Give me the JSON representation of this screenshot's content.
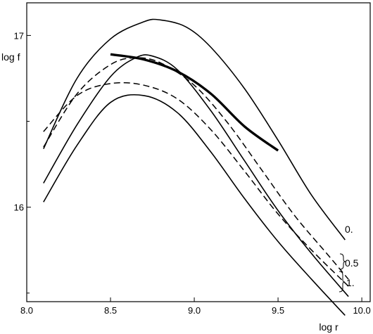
{
  "chart_data": {
    "type": "line",
    "xlabel": "log r",
    "ylabel": "log f",
    "xlim": [
      8.0,
      10.05
    ],
    "ylim": [
      15.45,
      17.19
    ],
    "xticks": [
      8.0,
      8.5,
      9.0,
      9.5,
      10.0
    ],
    "xtick_labels": [
      "8.0",
      "8.5",
      "9.0",
      "9.5",
      "10.0"
    ],
    "yticks": [
      16,
      17
    ],
    "ytick_labels": [
      "16",
      "17"
    ],
    "y_minor_ticks": [
      15.5,
      16.5
    ],
    "grid": false,
    "legend": "none",
    "curve_labels": [
      "0.",
      "0.5",
      "1."
    ],
    "series": [
      {
        "label_ref": 0,
        "style": "solid",
        "x": [
          8.1,
          8.3,
          8.5,
          8.7,
          8.8,
          8.95,
          9.1,
          9.3,
          9.5,
          9.7,
          9.9
        ],
        "y": [
          16.34,
          16.75,
          16.98,
          17.08,
          17.09,
          17.05,
          16.93,
          16.69,
          16.39,
          16.07,
          15.81
        ]
      },
      {
        "label_ref": 1,
        "style": "dashed",
        "x": [
          8.1,
          8.3,
          8.5,
          8.65,
          8.8,
          9.0,
          9.2,
          9.4,
          9.6,
          9.8,
          9.92
        ],
        "y": [
          16.35,
          16.66,
          16.83,
          16.87,
          16.84,
          16.71,
          16.49,
          16.22,
          15.95,
          15.72,
          15.58
        ]
      },
      {
        "label_ref": 1,
        "style": "dashed",
        "x": [
          8.1,
          8.3,
          8.5,
          8.7,
          8.9,
          9.1,
          9.3,
          9.5,
          9.7,
          9.92
        ],
        "y": [
          16.44,
          16.65,
          16.72,
          16.71,
          16.63,
          16.45,
          16.21,
          15.96,
          15.75,
          15.54
        ]
      },
      {
        "label_ref": 2,
        "style": "solid",
        "x": [
          8.1,
          8.3,
          8.5,
          8.65,
          8.75,
          8.9,
          9.1,
          9.3,
          9.5,
          9.7,
          9.92
        ],
        "y": [
          16.14,
          16.48,
          16.76,
          16.87,
          16.88,
          16.8,
          16.56,
          16.27,
          15.98,
          15.73,
          15.48
        ]
      },
      {
        "label_ref": 2,
        "style": "solid",
        "x": [
          8.1,
          8.3,
          8.5,
          8.7,
          8.9,
          9.1,
          9.3,
          9.5,
          9.7,
          9.9
        ],
        "y": [
          16.03,
          16.36,
          16.61,
          16.65,
          16.55,
          16.32,
          16.05,
          15.8,
          15.58,
          15.37
        ]
      },
      {
        "style": "bold",
        "x": [
          8.5,
          8.7,
          8.9,
          9.1,
          9.3,
          9.5
        ],
        "y": [
          16.89,
          16.86,
          16.79,
          16.66,
          16.47,
          16.33
        ]
      }
    ]
  }
}
